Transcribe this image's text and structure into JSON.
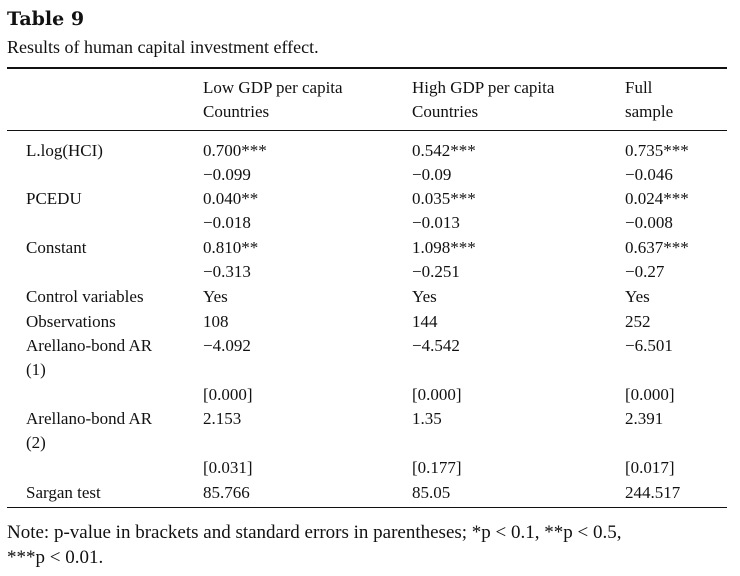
{
  "table": {
    "title": "Table 9",
    "caption": "Results of human capital investment effect.",
    "headers": {
      "col1_line1": "Low GDP per capita",
      "col1_line2": "Countries",
      "col2_line1": "High GDP per capita",
      "col2_line2": "Countries",
      "col3_line1": "Full",
      "col3_line2": "sample"
    },
    "rows": [
      {
        "label": "L.log(HCI)",
        "c1": "0.700***",
        "c2": "0.542***",
        "c3": "0.735***"
      },
      {
        "label": "",
        "c1": "−0.099",
        "c2": "−0.09",
        "c3": "−0.046"
      },
      {
        "label": "PCEDU",
        "c1": "0.040**",
        "c2": "0.035***",
        "c3": "0.024***"
      },
      {
        "label": "",
        "c1": "−0.018",
        "c2": "−0.013",
        "c3": "−0.008"
      },
      {
        "label": "Constant",
        "c1": "0.810**",
        "c2": "1.098***",
        "c3": "0.637***"
      },
      {
        "label": "",
        "c1": "−0.313",
        "c2": "−0.251",
        "c3": "−0.27"
      },
      {
        "label": "Control variables",
        "c1": "Yes",
        "c2": "Yes",
        "c3": "Yes"
      },
      {
        "label": "Observations",
        "c1": "108",
        "c2": "144",
        "c3": "252"
      },
      {
        "label": "Arellano-bond AR",
        "c1": "−4.092",
        "c2": "−4.542",
        "c3": "−6.501"
      },
      {
        "label": "(1)",
        "c1": "",
        "c2": "",
        "c3": ""
      },
      {
        "label": "",
        "c1": "[0.000]",
        "c2": "[0.000]",
        "c3": "[0.000]"
      },
      {
        "label": "Arellano-bond AR",
        "c1": "2.153",
        "c2": "1.35",
        "c3": "2.391"
      },
      {
        "label": "(2)",
        "c1": "",
        "c2": "",
        "c3": ""
      },
      {
        "label": "",
        "c1": "[0.031]",
        "c2": "[0.177]",
        "c3": "[0.017]"
      },
      {
        "label": "Sargan test",
        "c1": "85.766",
        "c2": "85.05",
        "c3": "244.517"
      }
    ],
    "note_line1": "Note: p-value in brackets and standard errors in parentheses; *p < 0.1, **p < 0.5,",
    "note_line2": "***p < 0.01."
  }
}
